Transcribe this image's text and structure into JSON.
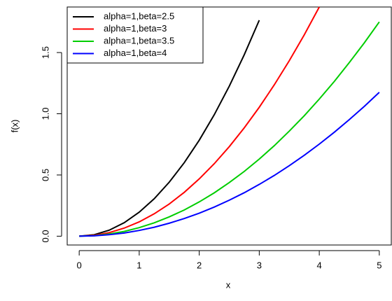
{
  "chart_data": {
    "type": "line",
    "xlabel": "x",
    "ylabel": "f(x)",
    "x": [
      0,
      0.25,
      0.5,
      0.75,
      1,
      1.25,
      1.5,
      1.75,
      2,
      2.25,
      2.5,
      2.75,
      3,
      3.25,
      3.5,
      3.75,
      4,
      4.25,
      4.5,
      4.75,
      5
    ],
    "series": [
      {
        "name": "alpha=1,beta=2.5",
        "color": "#000000",
        "values": [
          0,
          0.012,
          0.049,
          0.11,
          0.196,
          0.306,
          0.441,
          0.6,
          0.784,
          0.992,
          1.225,
          1.482,
          1.764,
          null,
          null,
          null,
          null,
          null,
          null,
          null,
          null
        ]
      },
      {
        "name": "alpha=1,beta=3",
        "color": "#ff0000",
        "values": [
          0,
          0.007,
          0.029,
          0.066,
          0.117,
          0.183,
          0.263,
          0.358,
          0.468,
          0.592,
          0.731,
          0.885,
          1.053,
          1.236,
          1.433,
          1.645,
          1.872,
          null,
          null,
          null,
          null
        ]
      },
      {
        "name": "alpha=1,beta=3.5",
        "color": "#00cd00",
        "values": [
          0,
          0.004,
          0.018,
          0.039,
          0.07,
          0.109,
          0.158,
          0.214,
          0.28,
          0.354,
          0.438,
          0.529,
          0.63,
          0.739,
          0.858,
          0.984,
          1.12,
          1.264,
          1.418,
          1.579,
          1.75
        ]
      },
      {
        "name": "alpha=1,beta=4",
        "color": "#0000ff",
        "values": [
          0,
          0.003,
          0.012,
          0.026,
          0.047,
          0.073,
          0.106,
          0.144,
          0.188,
          0.238,
          0.294,
          0.355,
          0.423,
          0.496,
          0.576,
          0.661,
          0.752,
          0.849,
          0.952,
          1.06,
          1.175
        ]
      }
    ],
    "xlim": [
      -0.2,
      5.2
    ],
    "xticks": [
      0,
      1,
      2,
      3,
      4,
      5
    ],
    "ylim": [
      -0.072,
      1.872
    ],
    "yticks": [
      {
        "value": 0,
        "label": "0.0"
      },
      {
        "value": 0.5,
        "label": "0.5"
      },
      {
        "value": 1,
        "label": "1.0"
      },
      {
        "value": 1.5,
        "label": "1.5"
      }
    ],
    "legend": "top-left"
  }
}
